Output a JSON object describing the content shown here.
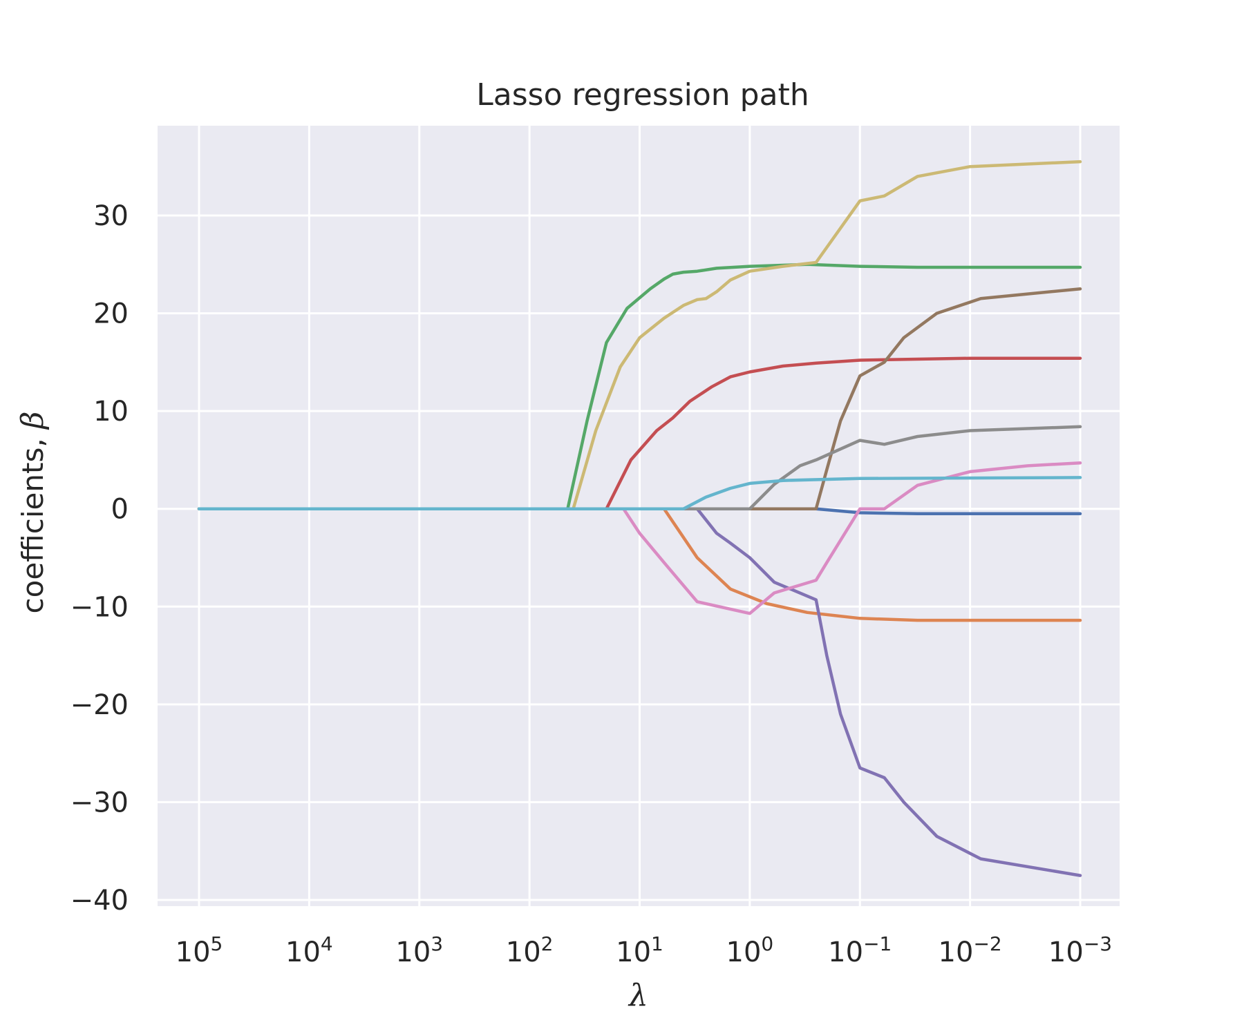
{
  "chart_data": {
    "type": "line",
    "title": "Lasso regression path",
    "xlabel_text": "λ",
    "ylabel_text": "coefficients, ",
    "ylabel_symbol": "β",
    "xscale": "log",
    "x_reversed": true,
    "xlim": [
      100000,
      0.001
    ],
    "ylim": [
      -40,
      35
    ],
    "grid": true,
    "background_color": "#eaeaf2",
    "x_ticks": [
      {
        "value": 100000,
        "base": "10",
        "exp": "5"
      },
      {
        "value": 10000,
        "base": "10",
        "exp": "4"
      },
      {
        "value": 1000,
        "base": "10",
        "exp": "3"
      },
      {
        "value": 100,
        "base": "10",
        "exp": "2"
      },
      {
        "value": 10,
        "base": "10",
        "exp": "1"
      },
      {
        "value": 1,
        "base": "10",
        "exp": "0"
      },
      {
        "value": 0.1,
        "base": "10",
        "exp": "−1"
      },
      {
        "value": 0.01,
        "base": "10",
        "exp": "−2"
      },
      {
        "value": 0.001,
        "base": "10",
        "exp": "−3"
      }
    ],
    "y_ticks": [
      {
        "value": 30,
        "label": "30"
      },
      {
        "value": 20,
        "label": "20"
      },
      {
        "value": 10,
        "label": "10"
      },
      {
        "value": 0,
        "label": "0"
      },
      {
        "value": -10,
        "label": "−10"
      },
      {
        "value": -20,
        "label": "−20"
      },
      {
        "value": -30,
        "label": "−30"
      },
      {
        "value": -40,
        "label": "−40"
      }
    ],
    "series": [
      {
        "color": "#4c72b0",
        "points": [
          [
            100000,
            0
          ],
          [
            0.25,
            0
          ],
          [
            0.1,
            -0.4
          ],
          [
            0.03,
            -0.5
          ],
          [
            0.001,
            -0.5
          ]
        ]
      },
      {
        "color": "#dd8452",
        "points": [
          [
            100000,
            0
          ],
          [
            6,
            0
          ],
          [
            3,
            -5
          ],
          [
            1.5,
            -8.2
          ],
          [
            0.7,
            -9.7
          ],
          [
            0.3,
            -10.6
          ],
          [
            0.1,
            -11.2
          ],
          [
            0.03,
            -11.4
          ],
          [
            0.001,
            -11.4
          ]
        ]
      },
      {
        "color": "#55a868",
        "points": [
          [
            100000,
            0
          ],
          [
            45,
            0
          ],
          [
            30,
            9
          ],
          [
            20,
            17
          ],
          [
            13,
            20.5
          ],
          [
            8,
            22.5
          ],
          [
            6,
            23.5
          ],
          [
            5,
            24
          ],
          [
            4,
            24.2
          ],
          [
            3,
            24.3
          ],
          [
            2,
            24.6
          ],
          [
            1,
            24.8
          ],
          [
            0.3,
            25
          ],
          [
            0.1,
            24.8
          ],
          [
            0.03,
            24.7
          ],
          [
            0.001,
            24.7
          ]
        ]
      },
      {
        "color": "#c44e52",
        "points": [
          [
            100000,
            0
          ],
          [
            20,
            0
          ],
          [
            12,
            5
          ],
          [
            7,
            8
          ],
          [
            5,
            9.3
          ],
          [
            3.5,
            11
          ],
          [
            2.2,
            12.5
          ],
          [
            1.5,
            13.5
          ],
          [
            1,
            14
          ],
          [
            0.5,
            14.6
          ],
          [
            0.25,
            14.9
          ],
          [
            0.1,
            15.2
          ],
          [
            0.01,
            15.4
          ],
          [
            0.001,
            15.4
          ]
        ]
      },
      {
        "color": "#8172b3",
        "points": [
          [
            100000,
            0
          ],
          [
            3,
            0
          ],
          [
            2,
            -2.5
          ],
          [
            1.5,
            -3.5
          ],
          [
            1,
            -5
          ],
          [
            0.6,
            -7.5
          ],
          [
            0.25,
            -9.3
          ],
          [
            0.2,
            -15
          ],
          [
            0.15,
            -21
          ],
          [
            0.1,
            -26.5
          ],
          [
            0.06,
            -27.5
          ],
          [
            0.04,
            -30
          ],
          [
            0.02,
            -33.5
          ],
          [
            0.008,
            -35.8
          ],
          [
            0.001,
            -37.5
          ]
        ]
      },
      {
        "color": "#937860",
        "points": [
          [
            100000,
            0
          ],
          [
            0.25,
            0
          ],
          [
            0.2,
            4
          ],
          [
            0.15,
            9
          ],
          [
            0.1,
            13.6
          ],
          [
            0.06,
            15
          ],
          [
            0.04,
            17.5
          ],
          [
            0.02,
            20
          ],
          [
            0.008,
            21.5
          ],
          [
            0.001,
            22.5
          ]
        ]
      },
      {
        "color": "#da8bc3",
        "points": [
          [
            100000,
            0
          ],
          [
            14,
            0
          ],
          [
            10,
            -2.5
          ],
          [
            6,
            -5.5
          ],
          [
            3,
            -9.5
          ],
          [
            1,
            -10.7
          ],
          [
            0.6,
            -8.6
          ],
          [
            0.25,
            -7.3
          ],
          [
            0.2,
            -5.5
          ],
          [
            0.1,
            0
          ],
          [
            0.06,
            0
          ],
          [
            0.03,
            2.4
          ],
          [
            0.01,
            3.8
          ],
          [
            0.003,
            4.4
          ],
          [
            0.001,
            4.7
          ]
        ]
      },
      {
        "color": "#8c8c8c",
        "points": [
          [
            100000,
            0
          ],
          [
            1,
            0
          ],
          [
            0.6,
            2.5
          ],
          [
            0.35,
            4.4
          ],
          [
            0.25,
            5
          ],
          [
            0.1,
            7
          ],
          [
            0.06,
            6.6
          ],
          [
            0.03,
            7.4
          ],
          [
            0.01,
            8
          ],
          [
            0.001,
            8.4
          ]
        ]
      },
      {
        "color": "#ccb974",
        "points": [
          [
            100000,
            0
          ],
          [
            40,
            0
          ],
          [
            25,
            8
          ],
          [
            15,
            14.5
          ],
          [
            10,
            17.5
          ],
          [
            6,
            19.5
          ],
          [
            4,
            20.8
          ],
          [
            3,
            21.4
          ],
          [
            2.5,
            21.5
          ],
          [
            2,
            22.2
          ],
          [
            1.5,
            23.4
          ],
          [
            1,
            24.3
          ],
          [
            0.5,
            24.8
          ],
          [
            0.25,
            25.2
          ],
          [
            0.1,
            31.5
          ],
          [
            0.06,
            32
          ],
          [
            0.03,
            34
          ],
          [
            0.01,
            35
          ],
          [
            0.001,
            35.5
          ]
        ]
      },
      {
        "color": "#64b5cd",
        "points": [
          [
            100000,
            0
          ],
          [
            4,
            0
          ],
          [
            2.5,
            1.2
          ],
          [
            1.5,
            2.1
          ],
          [
            1,
            2.6
          ],
          [
            0.5,
            2.9
          ],
          [
            0.1,
            3.1
          ],
          [
            0.001,
            3.2
          ]
        ]
      }
    ]
  }
}
